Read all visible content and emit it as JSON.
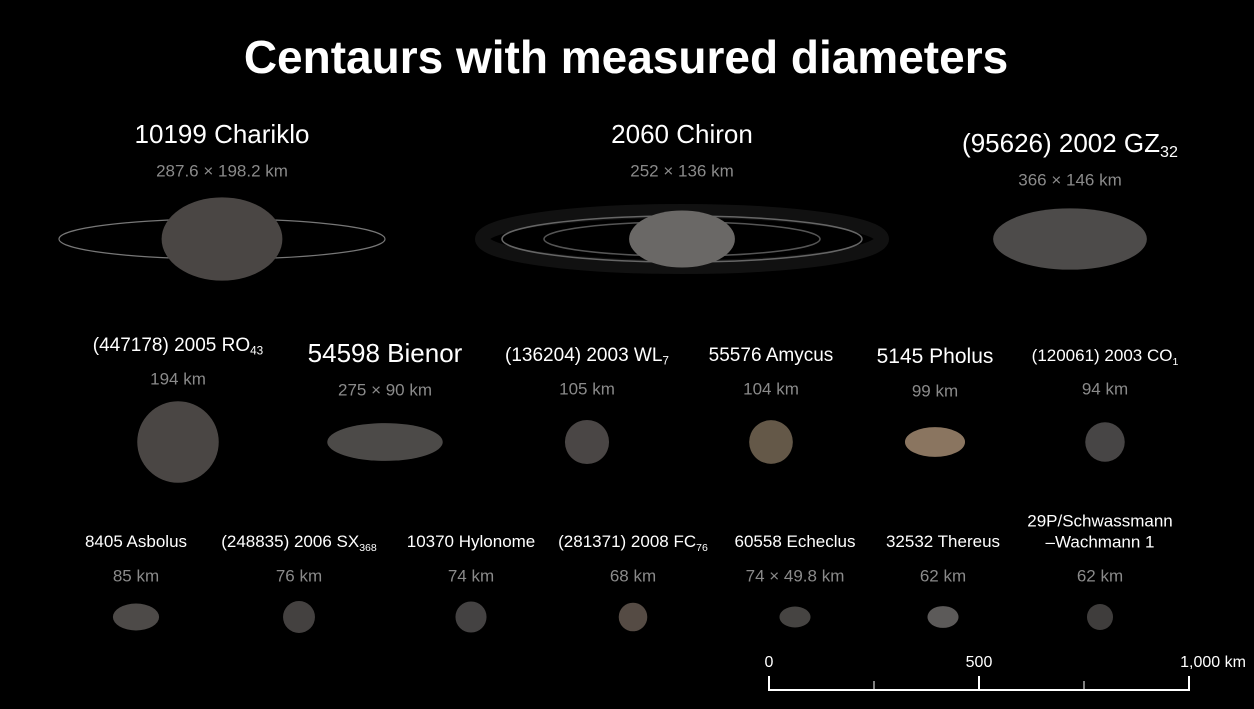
{
  "title": "Centaurs with measured diameters",
  "rows": [
    [
      {
        "name": "10199 Chariklo",
        "size": "287.6 × 198.2 km",
        "shape_km": [
          287.6,
          198.2
        ],
        "color": "#4a4644"
      },
      {
        "name": "2060 Chiron",
        "size": "252 × 136 km",
        "shape_km": [
          252,
          136
        ],
        "color": "#6a6866"
      },
      {
        "name": "(95626) 2002 GZ",
        "name_sub": "32",
        "size": "366 × 146 km",
        "shape_km": [
          366,
          146
        ],
        "color": "#4d4b4a"
      }
    ],
    [
      {
        "name": "(447178) 2005 RO",
        "name_sub": "43",
        "size": "194 km",
        "shape_km": [
          194,
          194
        ],
        "color": "#4a4644"
      },
      {
        "name": "54598 Bienor",
        "size": "275 × 90 km",
        "shape_km": [
          275,
          90
        ],
        "color": "#4c4a48"
      },
      {
        "name": "(136204) 2003 WL",
        "name_sub": "7",
        "size": "105 km",
        "shape_km": [
          105,
          105
        ],
        "color": "#4a4645"
      },
      {
        "name": "55576 Amycus",
        "size": "104 km",
        "shape_km": [
          104,
          104
        ],
        "color": "#645848"
      },
      {
        "name": "5145 Pholus",
        "size": "99 km",
        "shape_km": [
          143,
          71
        ],
        "color": "#8a7560"
      },
      {
        "name": "(120061) 2003 CO",
        "name_sub": "1",
        "size": "94 km",
        "shape_km": [
          94,
          94
        ],
        "color": "#474545"
      }
    ],
    [
      {
        "name": "8405 Asbolus",
        "size": "85 km",
        "shape_km": [
          110,
          64
        ],
        "color": "#4d4a48"
      },
      {
        "name": "(248835) 2006 SX",
        "name_sub": "368",
        "size": "76 km",
        "shape_km": [
          76,
          76
        ],
        "color": "#444140"
      },
      {
        "name": "10370 Hylonome",
        "size": "74 km",
        "shape_km": [
          74,
          74
        ],
        "color": "#444242"
      },
      {
        "name": "(281371) 2008 FC",
        "name_sub": "76",
        "size": "68 km",
        "shape_km": [
          68,
          68
        ],
        "color": "#554b44"
      },
      {
        "name": "60558 Echeclus",
        "size": "74 × 49.8 km",
        "shape_km": [
          74,
          49.8
        ],
        "color": "#464442"
      },
      {
        "name": "32532 Thereus",
        "size": "62 km",
        "shape_km": [
          74,
          52
        ],
        "color": "#5c5a59"
      },
      {
        "name": [
          "29P/Schwassmann",
          "–Wachmann 1"
        ],
        "size": "62 km",
        "shape_km": [
          62,
          62
        ],
        "color": "#3f3d3c"
      }
    ]
  ],
  "scale_bar": {
    "xlim": [
      0,
      1000
    ],
    "ticks": [
      0,
      500,
      {
        "value": 1000,
        "label": "1,000 km"
      }
    ],
    "minor_ticks": [
      250,
      750
    ]
  }
}
